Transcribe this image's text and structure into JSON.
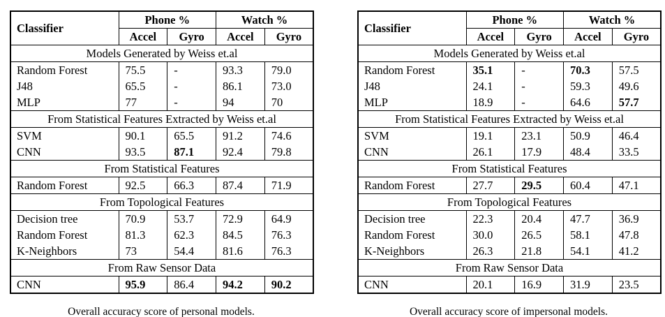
{
  "page": {
    "background": "#ffffff",
    "text_color": "#000000",
    "border_color": "#000000"
  },
  "columns": {
    "classifier": "Classifier",
    "groups": [
      "Phone %",
      "Watch %"
    ],
    "subcolumns": [
      "Accel",
      "Gyro",
      "Accel",
      "Gyro"
    ]
  },
  "tables": [
    {
      "name": "personal",
      "caption": "Overall accuracy score of personal models.",
      "sections": [
        {
          "title": "Models Generated by Weiss et.al",
          "rows": [
            {
              "classifier": "Random Forest",
              "values": [
                "75.5",
                "-",
                "93.3",
                "79.0"
              ],
              "bold": [
                false,
                false,
                false,
                false
              ]
            },
            {
              "classifier": "J48",
              "values": [
                "65.5",
                "-",
                "86.1",
                "73.0"
              ],
              "bold": [
                false,
                false,
                false,
                false
              ]
            },
            {
              "classifier": "MLP",
              "values": [
                "77",
                "-",
                "94",
                "70"
              ],
              "bold": [
                false,
                false,
                false,
                false
              ]
            }
          ]
        },
        {
          "title": "From Statistical Features Extracted by Weiss et.al",
          "rows": [
            {
              "classifier": "SVM",
              "values": [
                "90.1",
                "65.5",
                "91.2",
                "74.6"
              ],
              "bold": [
                false,
                false,
                false,
                false
              ]
            },
            {
              "classifier": "CNN",
              "values": [
                "93.5",
                "87.1",
                "92.4",
                "79.8"
              ],
              "bold": [
                false,
                true,
                false,
                false
              ]
            }
          ]
        },
        {
          "title": "From Statistical Features",
          "rows": [
            {
              "classifier": "Random Forest",
              "values": [
                "92.5",
                "66.3",
                "87.4",
                "71.9"
              ],
              "bold": [
                false,
                false,
                false,
                false
              ]
            }
          ]
        },
        {
          "title": "From Topological Features",
          "rows": [
            {
              "classifier": "Decision tree",
              "values": [
                "70.9",
                "53.7",
                "72.9",
                "64.9"
              ],
              "bold": [
                false,
                false,
                false,
                false
              ]
            },
            {
              "classifier": "Random Forest",
              "values": [
                "81.3",
                "62.3",
                "84.5",
                "76.3"
              ],
              "bold": [
                false,
                false,
                false,
                false
              ]
            },
            {
              "classifier": "K-Neighbors",
              "values": [
                "73",
                "54.4",
                "81.6",
                "76.3"
              ],
              "bold": [
                false,
                false,
                false,
                false
              ]
            }
          ]
        },
        {
          "title": "From Raw Sensor Data",
          "rows": [
            {
              "classifier": "CNN",
              "values": [
                "95.9",
                "86.4",
                "94.2",
                "90.2"
              ],
              "bold": [
                true,
                false,
                true,
                true
              ]
            }
          ]
        }
      ]
    },
    {
      "name": "impersonal",
      "caption": "Overall accuracy score of impersonal models.",
      "sections": [
        {
          "title": "Models Generated by Weiss et.al",
          "rows": [
            {
              "classifier": "Random Forest",
              "values": [
                "35.1",
                "-",
                "70.3",
                "57.5"
              ],
              "bold": [
                true,
                false,
                true,
                false
              ]
            },
            {
              "classifier": "J48",
              "values": [
                "24.1",
                "-",
                "59.3",
                "49.6"
              ],
              "bold": [
                false,
                false,
                false,
                false
              ]
            },
            {
              "classifier": "MLP",
              "values": [
                "18.9",
                "-",
                "64.6",
                "57.7"
              ],
              "bold": [
                false,
                false,
                false,
                true
              ]
            }
          ]
        },
        {
          "title": "From Statistical Features Extracted by Weiss et.al",
          "rows": [
            {
              "classifier": "SVM",
              "values": [
                "19.1",
                "23.1",
                "50.9",
                "46.4"
              ],
              "bold": [
                false,
                false,
                false,
                false
              ]
            },
            {
              "classifier": "CNN",
              "values": [
                "26.1",
                "17.9",
                "48.4",
                "33.5"
              ],
              "bold": [
                false,
                false,
                false,
                false
              ]
            }
          ]
        },
        {
          "title": "From Statistical Features",
          "rows": [
            {
              "classifier": "Random Forest",
              "values": [
                "27.7",
                "29.5",
                "60.4",
                "47.1"
              ],
              "bold": [
                false,
                true,
                false,
                false
              ]
            }
          ]
        },
        {
          "title": "From Topological Features",
          "rows": [
            {
              "classifier": "Decision tree",
              "values": [
                "22.3",
                "20.4",
                "47.7",
                "36.9"
              ],
              "bold": [
                false,
                false,
                false,
                false
              ]
            },
            {
              "classifier": "Random Forest",
              "values": [
                "30.0",
                "26.5",
                "58.1",
                "47.8"
              ],
              "bold": [
                false,
                false,
                false,
                false
              ]
            },
            {
              "classifier": "K-Neighbors",
              "values": [
                "26.3",
                "21.8",
                "54.1",
                "41.2"
              ],
              "bold": [
                false,
                false,
                false,
                false
              ]
            }
          ]
        },
        {
          "title": "From Raw Sensor Data",
          "rows": [
            {
              "classifier": "CNN",
              "values": [
                "20.1",
                "16.9",
                "31.9",
                "23.5"
              ],
              "bold": [
                false,
                false,
                false,
                false
              ]
            }
          ]
        }
      ]
    }
  ]
}
